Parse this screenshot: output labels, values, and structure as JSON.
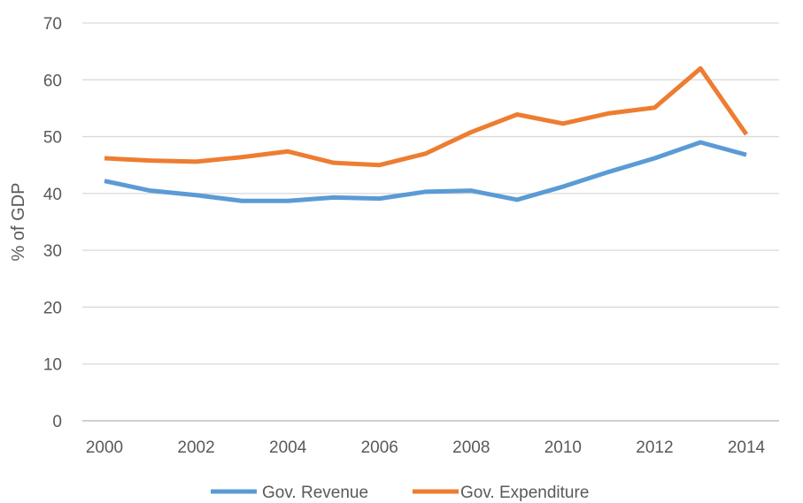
{
  "chart_data": {
    "type": "line",
    "x": [
      2000,
      2001,
      2002,
      2003,
      2004,
      2005,
      2006,
      2007,
      2008,
      2009,
      2010,
      2011,
      2012,
      2013,
      2014
    ],
    "x_tick_labels": [
      "2000",
      "2002",
      "2004",
      "2006",
      "2008",
      "2010",
      "2012",
      "2014"
    ],
    "y_tick_labels": [
      "0",
      "10",
      "20",
      "30",
      "40",
      "50",
      "60",
      "70"
    ],
    "ylabel": "% of GDP",
    "xlabel": "",
    "title": "",
    "ylim": [
      0,
      70
    ],
    "xlim": [
      2000,
      2014
    ],
    "grid": true,
    "legend_position": "bottom",
    "series": [
      {
        "name": "Gov. Revenue",
        "color": "#5b9bd5",
        "values": [
          42.2,
          40.5,
          39.7,
          38.7,
          38.7,
          39.3,
          39.1,
          40.3,
          40.5,
          38.9,
          41.2,
          43.8,
          46.2,
          49.0,
          46.8
        ]
      },
      {
        "name": "Gov. Expenditure",
        "color": "#ed7d31",
        "values": [
          46.2,
          45.8,
          45.6,
          46.4,
          47.4,
          45.4,
          45.0,
          47.0,
          50.8,
          53.9,
          52.3,
          54.1,
          55.1,
          62.0,
          50.4
        ]
      }
    ]
  }
}
